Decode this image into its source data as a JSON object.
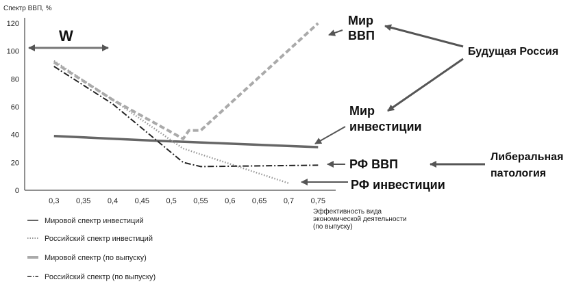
{
  "chart_data": {
    "type": "line",
    "ylabel": "Спектр ВВП, %",
    "xlabel_lines": [
      "Эффективность вида",
      "экономической деятельности",
      "(по выпуску)"
    ],
    "xlim": [
      0.25,
      0.78
    ],
    "ylim": [
      0,
      120
    ],
    "x_ticks": [
      0.3,
      0.35,
      0.4,
      0.45,
      0.5,
      0.55,
      0.6,
      0.65,
      0.7,
      0.75
    ],
    "x_tick_labels": [
      "0,3",
      "0,35",
      "0,4",
      "0,45",
      "0,5",
      "0,55",
      "0,6",
      "0,65",
      "0,7",
      "0,75"
    ],
    "y_ticks": [
      0,
      20,
      40,
      60,
      80,
      100,
      120
    ],
    "grid": false,
    "legend_position": "bottom-left",
    "series": [
      {
        "name": "Мировой спектр инвестиций",
        "color": "#666666",
        "style": "solid",
        "x": [
          0.3,
          0.45,
          0.75
        ],
        "y": [
          39,
          36,
          31
        ]
      },
      {
        "name": "Российский спектр инвестиций",
        "color": "#999999",
        "style": "dotted",
        "x": [
          0.3,
          0.4,
          0.52,
          0.7
        ],
        "y": [
          93,
          65,
          30,
          5
        ]
      },
      {
        "name": "Мировой спектр (по выпуску)",
        "color": "#aaaaaa",
        "style": "dashed",
        "x": [
          0.3,
          0.4,
          0.52,
          0.53,
          0.55,
          0.75
        ],
        "y": [
          92,
          65,
          37,
          43,
          43,
          120
        ]
      },
      {
        "name": "Российский спектр (по выпуску)",
        "color": "#222222",
        "style": "dashdot",
        "x": [
          0.3,
          0.4,
          0.52,
          0.55,
          0.75
        ],
        "y": [
          89,
          62,
          20,
          17,
          18
        ]
      }
    ],
    "annotations": {
      "w": "W",
      "mir_vvp": [
        "Мир",
        "ВВП"
      ],
      "mir_invest": [
        "Мир",
        "инвестиции"
      ],
      "rf_vvp": "РФ ВВП",
      "rf_invest": "РФ инвестиции",
      "future_russia": "Будущая Россия",
      "liberal": [
        "Либеральная",
        "патология"
      ]
    }
  }
}
